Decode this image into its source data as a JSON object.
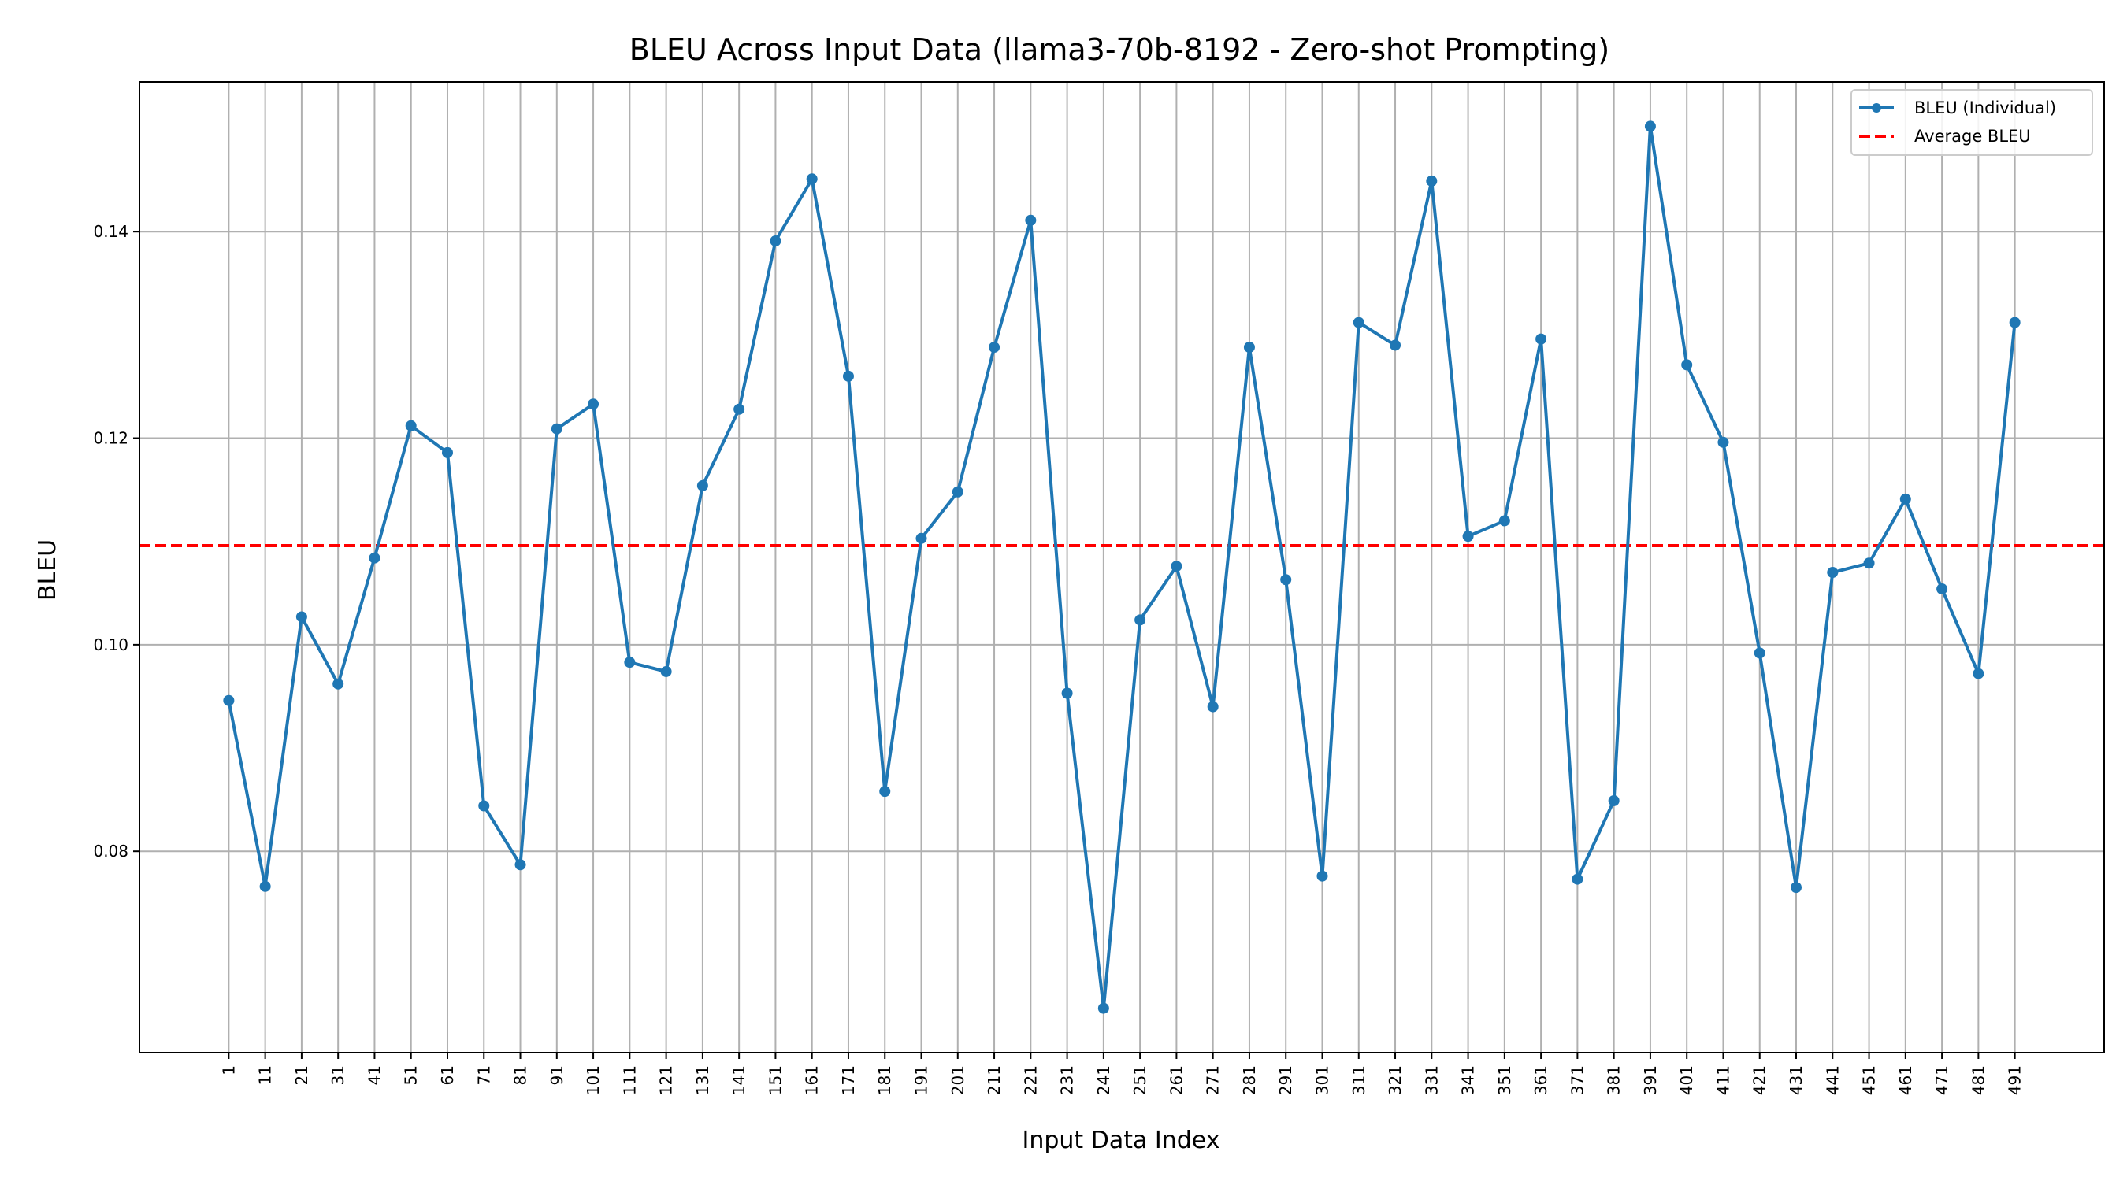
{
  "chart_data": {
    "type": "line",
    "title": "BLEU Across Input Data (llama3-70b-8192 - Zero-shot Prompting)",
    "xlabel": "Input Data Index",
    "ylabel": "BLEU",
    "x": [
      1,
      11,
      21,
      31,
      41,
      51,
      61,
      71,
      81,
      91,
      101,
      111,
      121,
      131,
      141,
      151,
      161,
      171,
      181,
      191,
      201,
      211,
      221,
      231,
      241,
      251,
      261,
      271,
      281,
      291,
      301,
      311,
      321,
      331,
      341,
      351,
      361,
      371,
      381,
      391,
      401,
      411,
      421,
      431,
      441,
      451,
      461,
      471,
      481,
      491
    ],
    "y_ticks": [
      "0.08",
      "0.10",
      "0.12",
      "0.14"
    ],
    "y_tick_values": [
      0.08,
      0.1,
      0.12,
      0.14
    ],
    "ylim": [
      0.0605,
      0.1545
    ],
    "xlim": [
      -23.5,
      515.5
    ],
    "grid": true,
    "legend_position": "top-right",
    "series": [
      {
        "name": "BLEU (Individual)",
        "color": "#1f77b4",
        "style": "solid-with-markers",
        "values": [
          0.0946,
          0.0766,
          0.1027,
          0.0962,
          0.1084,
          0.1212,
          0.1186,
          0.0844,
          0.0787,
          0.1209,
          0.1233,
          0.0983,
          0.0974,
          0.1154,
          0.1228,
          0.1391,
          0.1451,
          0.126,
          0.0858,
          0.1103,
          0.1148,
          0.1288,
          0.1411,
          0.0953,
          0.0648,
          0.1024,
          0.1076,
          0.094,
          0.1288,
          0.1063,
          0.0776,
          0.1312,
          0.129,
          0.1449,
          0.1105,
          0.112,
          0.1296,
          0.0773,
          0.0849,
          0.1502,
          0.1271,
          0.1196,
          0.0992,
          0.0765,
          0.107,
          0.1079,
          0.1141,
          0.1054,
          0.0972,
          0.1312
        ]
      },
      {
        "name": "Average BLEU",
        "color": "#ff0000",
        "style": "dashed",
        "value": 0.1096
      }
    ]
  }
}
